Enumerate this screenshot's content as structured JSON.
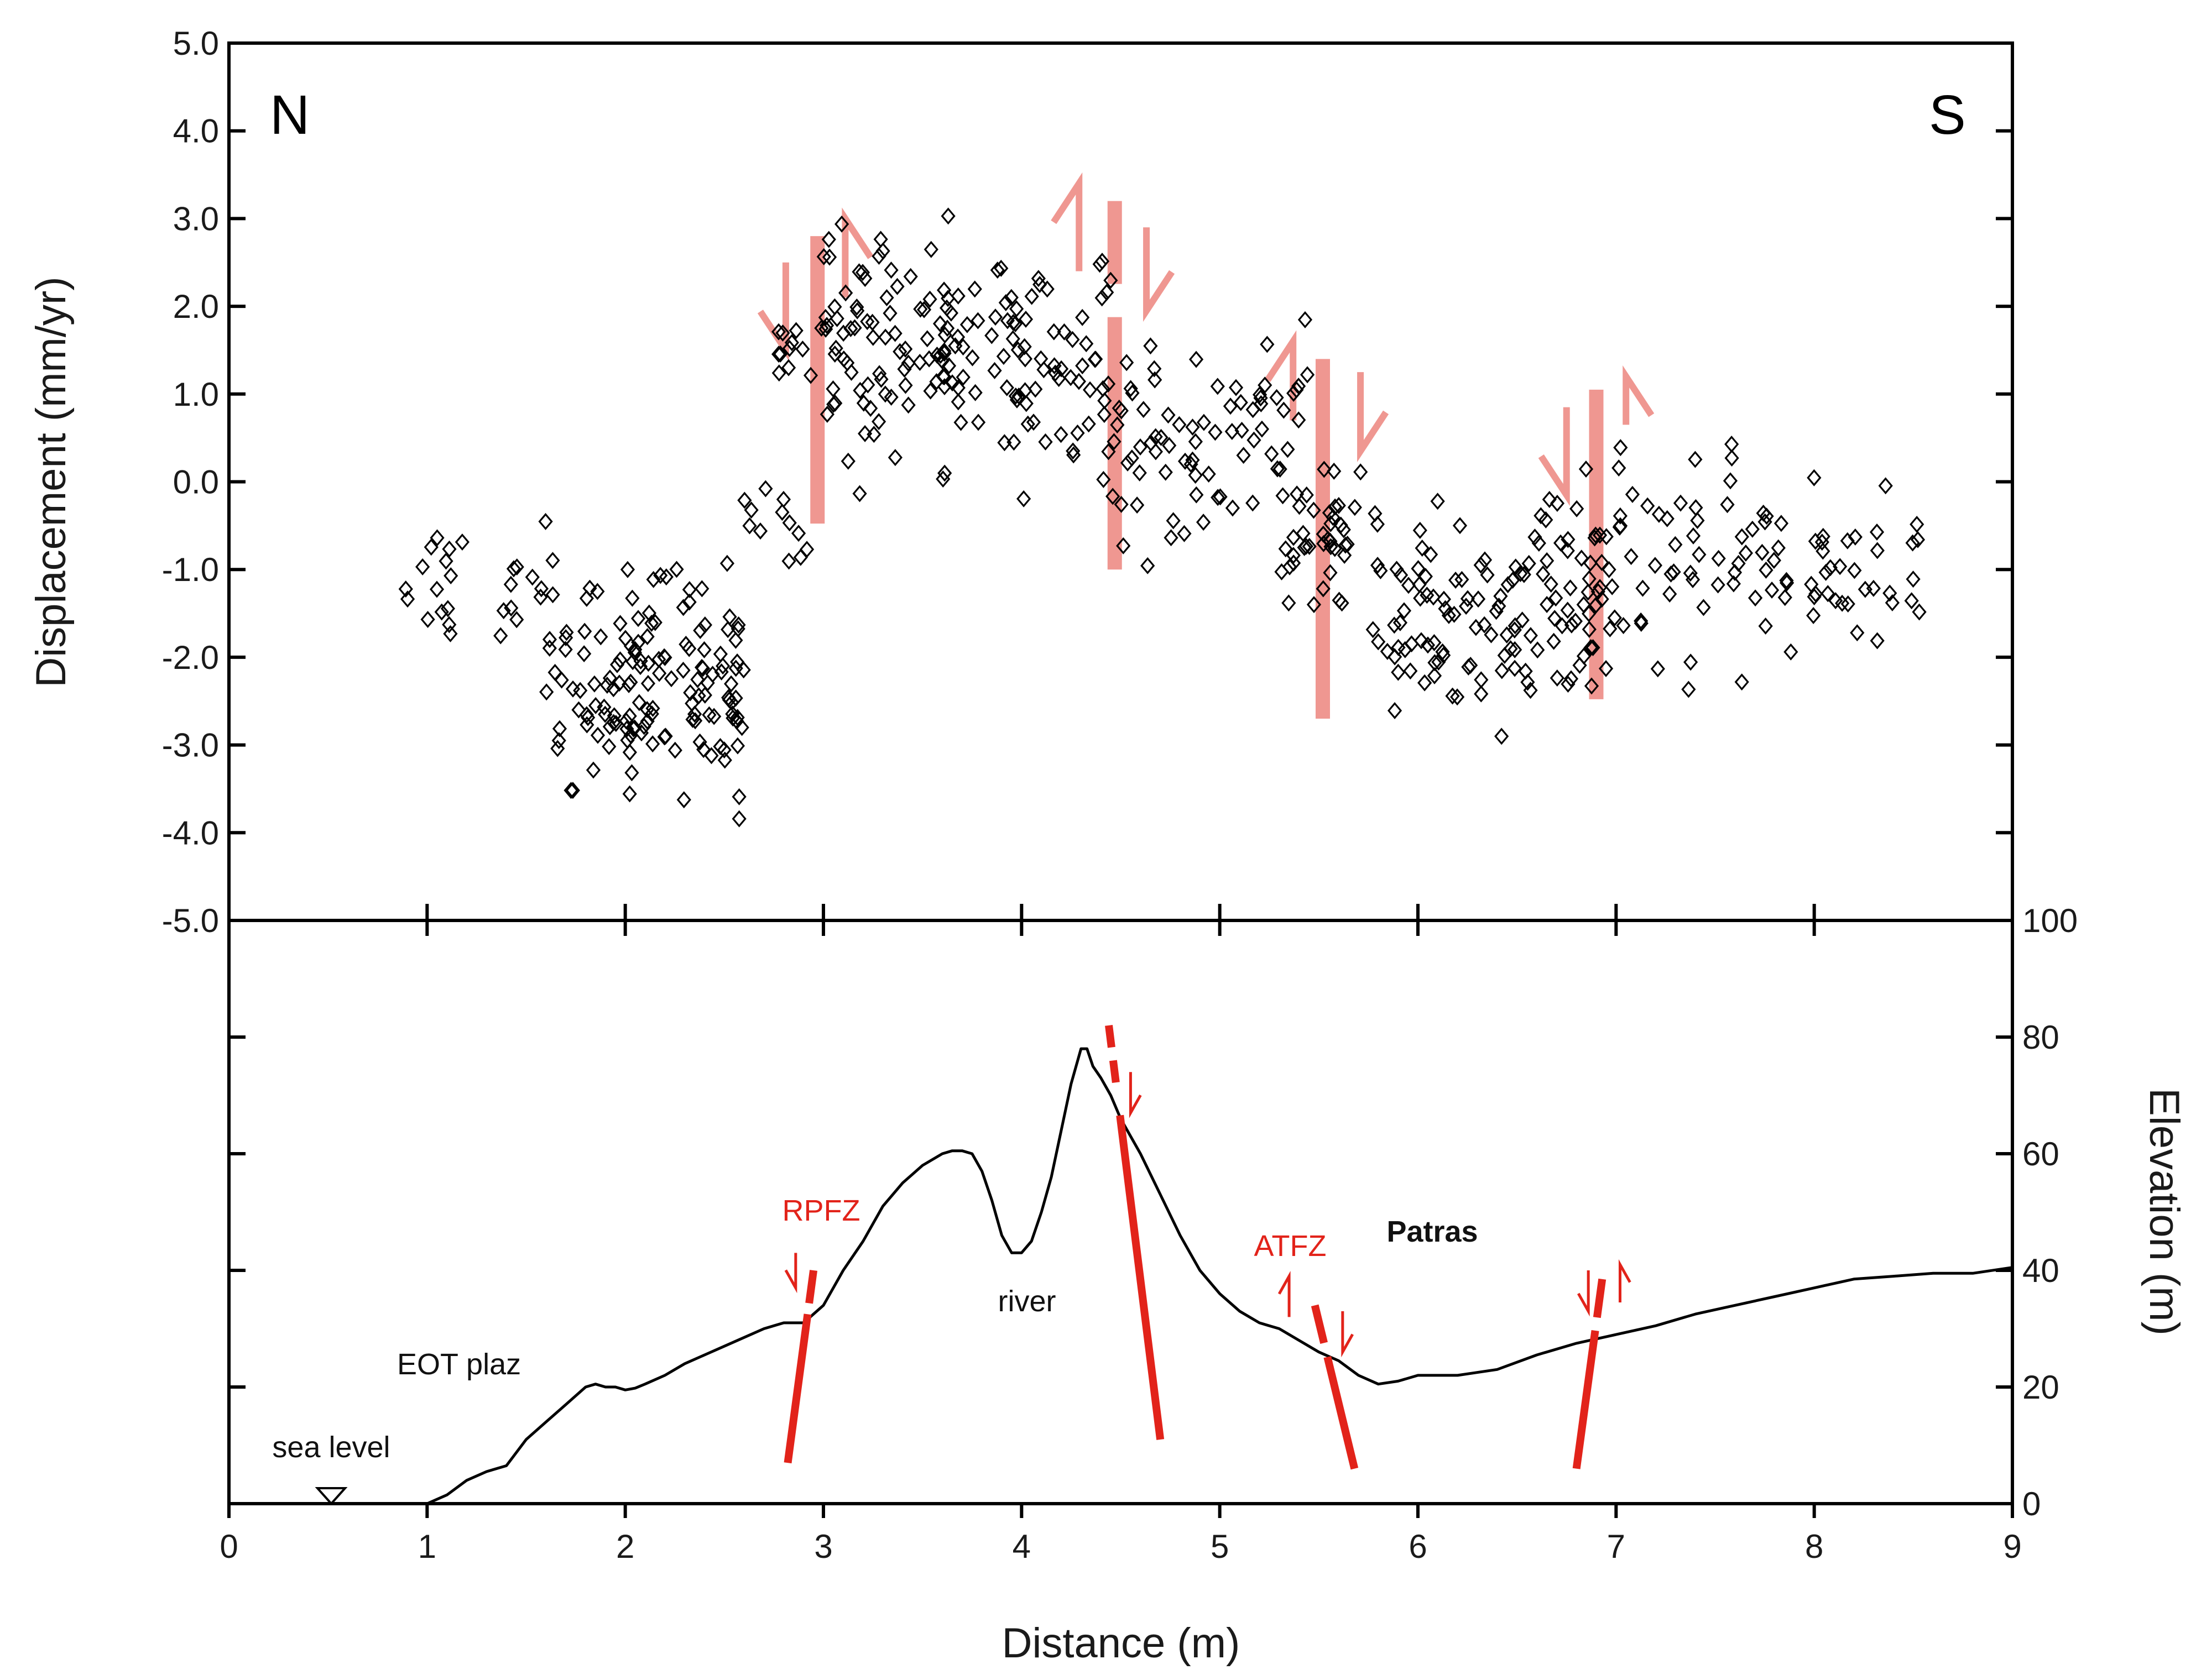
{
  "chart_data": [
    {
      "type": "scatter",
      "title": "",
      "panel": "top",
      "xlabel": "",
      "ylabel": "Displacement (mm/yr)",
      "xlim": [
        0,
        9
      ],
      "ylim": [
        -5.0,
        5.0
      ],
      "y_ticks": [
        "5.0",
        "4.0",
        "3.0",
        "2.0",
        "1.0",
        "0.0",
        "-1.0",
        "-2.0",
        "-3.0",
        "-4.0",
        "-5.0"
      ],
      "corner_labels": {
        "left": "N",
        "right": "S"
      },
      "marker": "open diamond",
      "marker_color": "#000000",
      "series": [
        {
          "name": "Displacement",
          "x_range": [
            0.88,
            8.55
          ],
          "approx_points": 700
        }
      ],
      "point_clusters": [
        {
          "x": [
            0.85,
            1.6
          ],
          "y": [
            -2.3,
            -0.2
          ],
          "n": 26
        },
        {
          "x": [
            1.6,
            2.6
          ],
          "y": [
            -4.2,
            -0.5
          ],
          "n": 150
        },
        {
          "x": [
            2.6,
            2.95
          ],
          "y": [
            -1.5,
            0.6
          ],
          "n": 12
        },
        {
          "x": [
            2.7,
            3.0
          ],
          "y": [
            0.9,
            2.1
          ],
          "n": 12
        },
        {
          "x": [
            3.0,
            4.45
          ],
          "y": [
            -0.5,
            3.5
          ],
          "n": 170
        },
        {
          "x": [
            4.45,
            5.45
          ],
          "y": [
            -1.2,
            2.1
          ],
          "n": 75
        },
        {
          "x": [
            5.3,
            5.8
          ],
          "y": [
            -2.2,
            0.8
          ],
          "n": 45
        },
        {
          "x": [
            5.8,
            6.6
          ],
          "y": [
            -3.4,
            0.1
          ],
          "n": 80
        },
        {
          "x": [
            6.6,
            7.1
          ],
          "y": [
            -2.8,
            0.8
          ],
          "n": 60
        },
        {
          "x": [
            7.1,
            7.8
          ],
          "y": [
            -2.6,
            1.1
          ],
          "n": 45
        },
        {
          "x": [
            7.8,
            8.55
          ],
          "y": [
            -2.3,
            0.4
          ],
          "n": 40
        }
      ],
      "fault_markers": [
        {
          "x": 2.97,
          "sense": "north block down, south block up"
        },
        {
          "x": 4.47,
          "sense": "north block up, south block down"
        },
        {
          "x": 5.52,
          "sense": "north block up, south block down"
        },
        {
          "x": 6.9,
          "sense": "north block down, south block up"
        }
      ],
      "fault_color": "#ef9791"
    },
    {
      "type": "line",
      "title": "",
      "panel": "bottom",
      "xlabel": "Distance (m)",
      "ylabel": "Elevation (m)",
      "xlim": [
        0,
        9
      ],
      "ylim": [
        0,
        100
      ],
      "x_ticks": [
        "0",
        "1",
        "2",
        "3",
        "4",
        "5",
        "6",
        "7",
        "8",
        "9"
      ],
      "y_ticks": [
        "100",
        "80",
        "60",
        "40",
        "20",
        "0"
      ],
      "series": [
        {
          "name": "Topographic profile",
          "x": [
            1.0,
            1.1,
            1.2,
            1.3,
            1.4,
            1.5,
            1.6,
            1.7,
            1.8,
            1.85,
            1.9,
            1.95,
            2.0,
            2.05,
            2.1,
            2.2,
            2.3,
            2.4,
            2.5,
            2.6,
            2.7,
            2.8,
            2.9,
            3.0,
            3.1,
            3.2,
            3.3,
            3.4,
            3.5,
            3.6,
            3.65,
            3.7,
            3.75,
            3.8,
            3.85,
            3.9,
            3.95,
            4.0,
            4.05,
            4.1,
            4.15,
            4.2,
            4.25,
            4.3,
            4.33,
            4.36,
            4.4,
            4.45,
            4.5,
            4.6,
            4.7,
            4.8,
            4.9,
            5.0,
            5.1,
            5.2,
            5.3,
            5.4,
            5.5,
            5.6,
            5.7,
            5.8,
            5.9,
            6.0,
            6.2,
            6.4,
            6.6,
            6.8,
            7.0,
            7.2,
            7.4,
            7.6,
            7.8,
            8.0,
            8.2,
            8.4,
            8.6,
            8.8,
            9.0
          ],
          "y": [
            0.0,
            1.5,
            4.0,
            5.5,
            6.5,
            11.0,
            14.0,
            17.0,
            20.0,
            20.5,
            20.0,
            20.0,
            19.5,
            19.8,
            20.5,
            22.0,
            24.0,
            25.5,
            27.0,
            28.5,
            30.0,
            31.0,
            31.0,
            34.0,
            40.0,
            45.0,
            51.0,
            55.0,
            58.0,
            60.0,
            60.5,
            60.5,
            60.0,
            57.0,
            52.0,
            46.0,
            43.0,
            43.0,
            45.0,
            50.0,
            56.0,
            64.0,
            72.0,
            78.0,
            78.0,
            75.0,
            73.0,
            70.0,
            66.0,
            60.0,
            53.0,
            46.0,
            40.0,
            36.0,
            33.0,
            31.0,
            30.0,
            28.0,
            26.0,
            24.5,
            22.0,
            20.5,
            21.0,
            22.0,
            22.0,
            23.0,
            25.5,
            27.5,
            29.0,
            30.5,
            32.5,
            34.0,
            35.5,
            37.0,
            38.5,
            39.0,
            39.5,
            39.5,
            40.5
          ]
        }
      ],
      "annotations": [
        {
          "text": "sea level",
          "x": 0.52,
          "y": 8
        },
        {
          "text": "EOT plaz",
          "x": 1.3,
          "y": 23
        },
        {
          "text": "RPFZ",
          "x": 2.98,
          "y": 50
        },
        {
          "text": "river",
          "x": 4.02,
          "y": 34
        },
        {
          "text": "ATFZ",
          "x": 5.35,
          "y": 44
        },
        {
          "text": "Patras",
          "x": 6.1,
          "y": 47
        }
      ],
      "faults": [
        {
          "x_top": 2.95,
          "x_bottom": 2.82
        },
        {
          "x_top": 4.45,
          "x_bottom": 4.7
        },
        {
          "x_top": 5.5,
          "x_bottom": 5.68
        },
        {
          "x_top": 6.93,
          "x_bottom": 6.8
        }
      ],
      "fault_color": "#e2231a",
      "line_color": "#000000"
    }
  ]
}
